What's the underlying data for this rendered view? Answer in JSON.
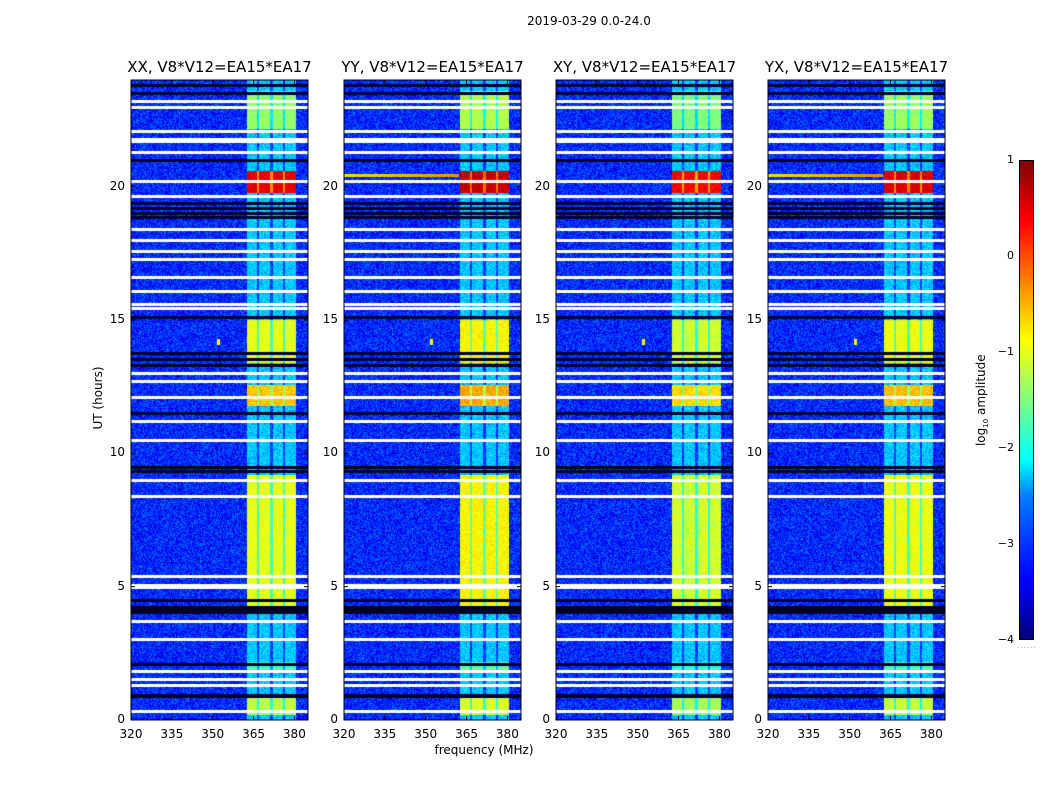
{
  "chart_data": {
    "type": "heatmap",
    "title": "2019-03-29 0.0-24.0",
    "xlabel": "frequency (MHz)",
    "ylabel": "UT (hours)",
    "xlim": [
      320,
      385
    ],
    "ylim": [
      0,
      24
    ],
    "xticks": [
      320,
      335,
      350,
      365,
      380
    ],
    "yticks": [
      0,
      5,
      10,
      15,
      20
    ],
    "panels": [
      {
        "title": "XX, V8*V12=EA15*EA17",
        "pol": "XX",
        "offset": 0.0
      },
      {
        "title": "YY, V8*V12=EA15*EA17",
        "pol": "YY",
        "offset": 0.15
      },
      {
        "title": "XY, V8*V12=EA15*EA17",
        "pol": "XY",
        "offset": -0.1
      },
      {
        "title": "YX, V8*V12=EA15*EA17",
        "pol": "YX",
        "offset": 0.05
      }
    ],
    "colorbar": {
      "label_main": "log",
      "label_sub": "10",
      "label_rest": " amplitude",
      "range": [
        -4,
        1
      ],
      "ticks": [
        "1",
        "0",
        "−1",
        "−2",
        "−3",
        "−4"
      ],
      "tick_values": [
        1,
        0,
        -1,
        -2,
        -3,
        -4
      ],
      "colormap": "jet"
    },
    "background_level": -3.2,
    "band_mhz": [
      362.5,
      380.5
    ],
    "band_gaps_mhz": [
      366.5,
      371.5,
      376.0
    ],
    "band_activity": [
      {
        "t": [
          0.2,
          0.9
        ],
        "level": -1.2
      },
      {
        "t": [
          1.9,
          2.2
        ],
        "level": -1.8
      },
      {
        "t": [
          4.2,
          9.2
        ],
        "level": -1.0
      },
      {
        "t": [
          11.8,
          12.6
        ],
        "level": -0.6
      },
      {
        "t": [
          13.4,
          15.0
        ],
        "level": -1.0
      },
      {
        "t": [
          19.8,
          20.6
        ],
        "level": 0.5
      },
      {
        "t": [
          22.2,
          23.6
        ],
        "level": -1.4
      }
    ],
    "flagged_hours": [
      0.35,
      1.3,
      1.55,
      1.85,
      3.05,
      3.7,
      5.0,
      5.08,
      5.4,
      8.4,
      9.0,
      10.5,
      11.2,
      12.1,
      12.7,
      13.0,
      15.45,
      15.6,
      16.1,
      16.6,
      17.3,
      17.6,
      18.0,
      18.4,
      19.65,
      20.2,
      21.3,
      21.7,
      21.8,
      22.1,
      23.0,
      23.2
    ],
    "dark_hours": [
      0.9,
      0.95,
      2.1,
      4.05,
      4.15,
      4.25,
      4.5,
      9.35,
      9.5,
      11.5,
      13.3,
      13.55,
      13.75,
      15.1,
      18.85,
      19.0,
      19.2,
      19.4,
      21.0,
      23.5,
      23.8
    ],
    "rfi_event": {
      "t": 14.2,
      "f": 352.0
    }
  }
}
